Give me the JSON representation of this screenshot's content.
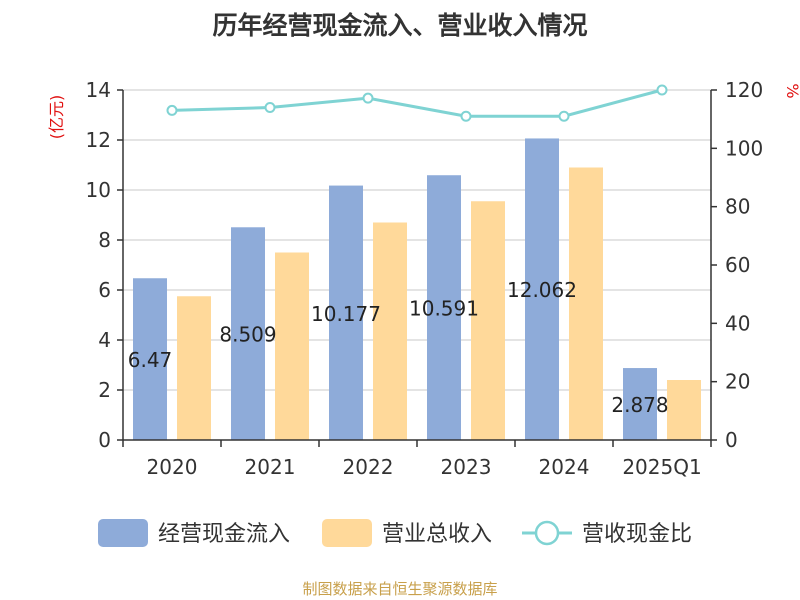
{
  "title": "历年经营现金流入、营业收入情况",
  "watermark": "制图数据来自恒生聚源数据库",
  "chart_data": {
    "type": "bar",
    "categories": [
      "2020",
      "2021",
      "2022",
      "2023",
      "2024",
      "2025Q1"
    ],
    "series": [
      {
        "name": "经营现金流入",
        "type": "bar",
        "axis": "left",
        "color": "#8eabd9",
        "values": [
          6.47,
          8.509,
          10.177,
          10.591,
          12.062,
          2.878
        ]
      },
      {
        "name": "营业总收入",
        "type": "bar",
        "axis": "left",
        "color": "#ffd99a",
        "values": [
          5.75,
          7.5,
          8.7,
          9.55,
          10.9,
          2.4
        ]
      },
      {
        "name": "营收现金比",
        "type": "line",
        "axis": "right",
        "color": "#7fd3d3",
        "values": [
          113,
          114,
          117.2,
          111,
          111,
          120
        ]
      }
    ],
    "data_labels": [
      "6.47",
      "8.509",
      "10.177",
      "10.591",
      "12.062",
      "2.878"
    ],
    "y_left": {
      "label": "(亿元)",
      "min": 0,
      "max": 14,
      "ticks": [
        0,
        2,
        4,
        6,
        8,
        10,
        12,
        14
      ]
    },
    "y_right": {
      "label": "%",
      "min": 0,
      "max": 120,
      "ticks": [
        0,
        20,
        40,
        60,
        80,
        100,
        120
      ]
    },
    "grid": true,
    "legend_position": "bottom"
  }
}
